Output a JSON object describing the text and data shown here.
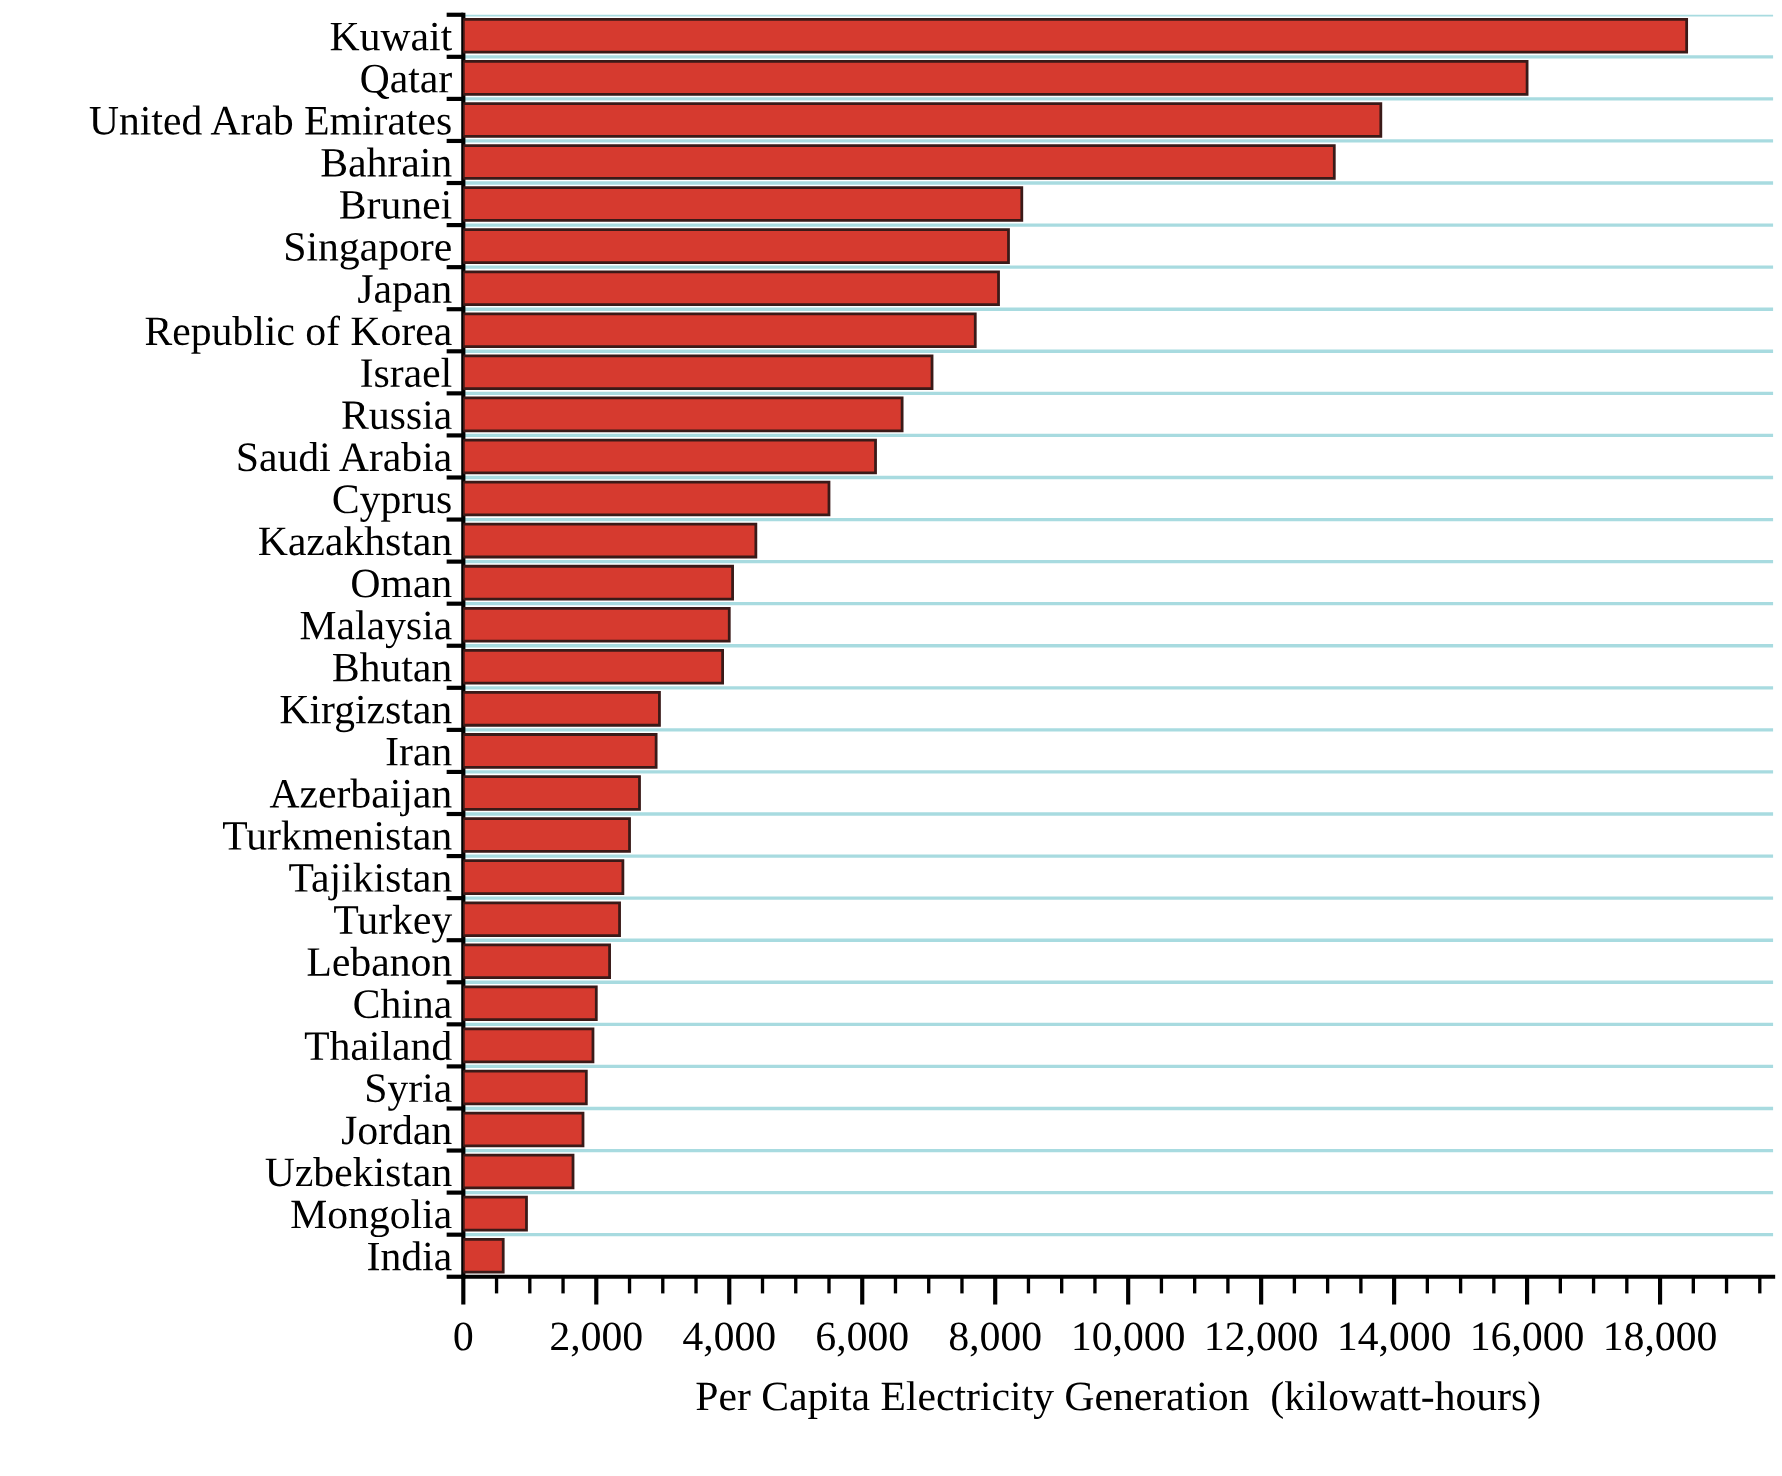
{
  "chart_data": {
    "type": "bar",
    "orientation": "horizontal",
    "xlabel": "Per Capita Electricity Generation  (kilowatt-hours)",
    "categories": [
      "Kuwait",
      "Qatar",
      "United Arab Emirates",
      "Bahrain",
      "Brunei",
      "Singapore",
      "Japan",
      "Republic of Korea",
      "Israel",
      "Russia",
      "Saudi Arabia",
      "Cyprus",
      "Kazakhstan",
      "Oman",
      "Malaysia",
      "Bhutan",
      "Kirgizstan",
      "Iran",
      "Azerbaijan",
      "Turkmenistan",
      "Tajikistan",
      "Turkey",
      "Lebanon",
      "China",
      "Thailand",
      "Syria",
      "Jordan",
      "Uzbekistan",
      "Mongolia",
      "India"
    ],
    "values": [
      18400,
      16000,
      13800,
      13100,
      8400,
      8200,
      8050,
      7700,
      7050,
      6600,
      6200,
      5500,
      4400,
      4050,
      4000,
      3900,
      2950,
      2900,
      2650,
      2500,
      2400,
      2350,
      2200,
      2000,
      1950,
      1850,
      1800,
      1650,
      950,
      600
    ],
    "color": "#d63a2f",
    "xlim": [
      0,
      19700
    ],
    "xticks": [
      0,
      {
        "value": 500,
        "label": null
      },
      {
        "value": 1000,
        "label": null
      },
      {
        "value": 1500,
        "label": null
      },
      {
        "value": 2000,
        "label": "2,000"
      },
      {
        "value": 2500,
        "label": null
      },
      {
        "value": 3000,
        "label": null
      },
      {
        "value": 3500,
        "label": null
      },
      {
        "value": 4000,
        "label": "4,000"
      },
      {
        "value": 4500,
        "label": null
      },
      {
        "value": 5000,
        "label": null
      },
      {
        "value": 5500,
        "label": null
      },
      {
        "value": 6000,
        "label": "6,000"
      },
      {
        "value": 6500,
        "label": null
      },
      {
        "value": 7000,
        "label": null
      },
      {
        "value": 7500,
        "label": null
      },
      {
        "value": 8000,
        "label": "8,000"
      },
      {
        "value": 8500,
        "label": null
      },
      {
        "value": 9000,
        "label": null
      },
      {
        "value": 9500,
        "label": null
      },
      {
        "value": 10000,
        "label": "10,000"
      },
      {
        "value": 10500,
        "label": null
      },
      {
        "value": 11000,
        "label": null
      },
      {
        "value": 11500,
        "label": null
      },
      {
        "value": 12000,
        "label": "12,000"
      },
      {
        "value": 12500,
        "label": null
      },
      {
        "value": 13000,
        "label": null
      },
      {
        "value": 13500,
        "label": null
      },
      {
        "value": 14000,
        "label": "14,000"
      },
      {
        "value": 14500,
        "label": null
      },
      {
        "value": 15000,
        "label": null
      },
      {
        "value": 15500,
        "label": null
      },
      {
        "value": 16000,
        "label": "16,000"
      },
      {
        "value": 16500,
        "label": null
      },
      {
        "value": 17000,
        "label": null
      },
      {
        "value": 17500,
        "label": null
      },
      {
        "value": 18000,
        "label": "18,000"
      },
      {
        "value": 18500,
        "label": null
      },
      {
        "value": 19000,
        "label": null
      },
      {
        "value": 19500,
        "label": null
      }
    ],
    "grid": "y"
  }
}
